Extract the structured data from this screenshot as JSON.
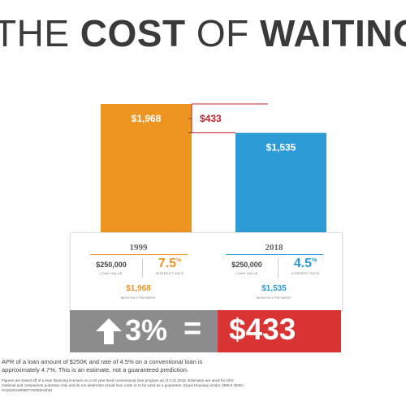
{
  "title": {
    "part1": "THE ",
    "part2": "COST",
    "part3": " OF ",
    "part4": "WAITING"
  },
  "chart_data": {
    "type": "bar",
    "categories": [
      "1999",
      "2018"
    ],
    "values": [
      1968,
      1535
    ],
    "value_labels": [
      "$1,968",
      "$1,535"
    ],
    "difference": 433,
    "difference_label": "$433",
    "colors": [
      "#ee9420",
      "#2d9bd6"
    ],
    "difference_color": "#c8202f"
  },
  "comparison": {
    "left": {
      "year": "1999",
      "loan_value": "$250,000",
      "loan_value_label": "LOAN VALUE",
      "interest_rate": "7.5",
      "interest_rate_unit": "%",
      "interest_rate_label": "INTEREST RATE",
      "monthly_payment": "$1,968",
      "monthly_payment_label": "MONTHLY PAYMENT",
      "accent": "#ee9420"
    },
    "right": {
      "year": "2018",
      "loan_value": "$250,000",
      "loan_value_label": "LOAN VALUE",
      "interest_rate": "4.5",
      "interest_rate_unit": "%",
      "interest_rate_label": "INTEREST RATE",
      "monthly_payment": "$1,535",
      "monthly_payment_label": "MONTHLY PAYMENT",
      "accent": "#2d9bd6"
    }
  },
  "banner": {
    "arrow_icon": "up-arrow-icon",
    "increase": "3%",
    "equals": "=",
    "amount": "$433",
    "left_color": "#8c8c8c",
    "right_color": "#d93433"
  },
  "footnote": {
    "line1": "APR of a loan amount of $250K and rate of 4.5% on a conventional loan is",
    "line2": "approximately 4.7%. This is an estimate, not a guaranteed prediction.",
    "small1": "Figures are based off of a loan financing scenario on a 30 year fixed conventional loan program as of 2.22.2018. Estimates are used for infor-",
    "small2": "mational and comparison purposes only and do not determine actual loan costs or to be used as a guarantee. Equal Housing Lender, NMLS 3645 |",
    "small3": "#eQ022318068TY000004Jh5z"
  }
}
